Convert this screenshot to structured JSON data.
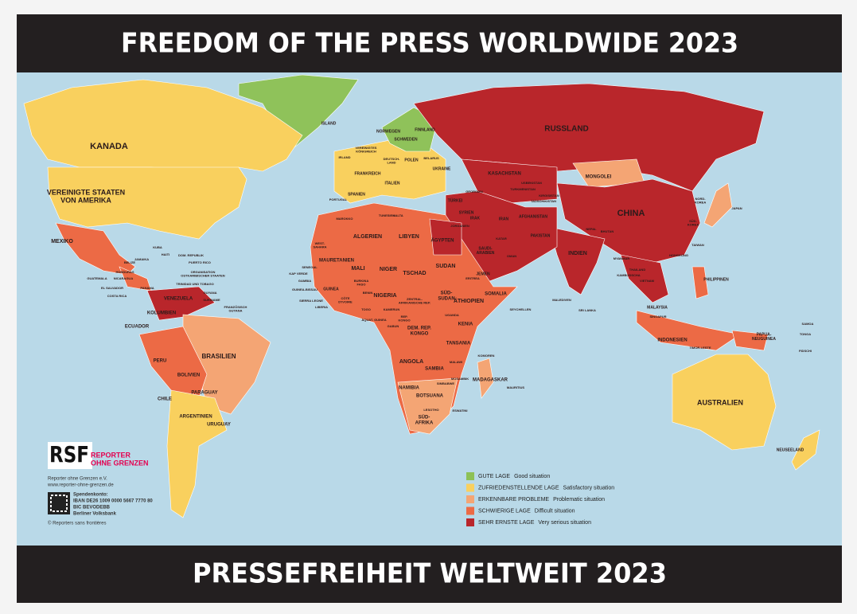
{
  "header": {
    "title": "FREEDOM OF THE PRESS WORLDWIDE 2023"
  },
  "footer": {
    "title": "PRESSEFREIHEIT WELTWEIT 2023"
  },
  "map": {
    "labels": [
      [
        "KANADA"
      ],
      [
        "VEREINIGTE STAATEN",
        "VON AMERIKA"
      ],
      [
        "MEXIKO"
      ],
      [
        "ISLAND"
      ],
      [
        "RUSSLAND"
      ],
      [
        "KASACHSTAN"
      ],
      [
        "MONGOLEI"
      ],
      [
        "CHINA"
      ],
      [
        "INDIEN"
      ],
      [
        "BRASILIEN"
      ],
      [
        "ARGENTINIEN"
      ],
      [
        "CHILE"
      ],
      [
        "PERU"
      ],
      [
        "BOLIVIEN"
      ],
      [
        "KOLUMBIEN"
      ],
      [
        "VENEZUELA"
      ],
      [
        "ECUADOR"
      ],
      [
        "PARAGUAY"
      ],
      [
        "URUGUAY"
      ],
      [
        "AUSTRALIEN"
      ],
      [
        "NEUSEELAND"
      ],
      [
        "INDONESIEN"
      ],
      [
        "PHILIPPINEN"
      ],
      [
        "JAPAN"
      ],
      [
        "ALGERIEN"
      ],
      [
        "LIBYEN"
      ],
      [
        "ÄGYPTEN"
      ],
      [
        "MAURETANIEN"
      ],
      [
        "MALI"
      ],
      [
        "NIGER"
      ],
      [
        "TSCHAD"
      ],
      [
        "SUDAN"
      ],
      [
        "NIGERIA"
      ],
      [
        "ÄTHIOPIEN"
      ],
      [
        "SOMALIA"
      ],
      [
        "KENIA"
      ],
      [
        "DEM. REP.",
        "KONGO"
      ],
      [
        "TANSANIA"
      ],
      [
        "ANGOLA"
      ],
      [
        "SAMBIA"
      ],
      [
        "NAMIBIA"
      ],
      [
        "BOTSUANA"
      ],
      [
        "SÜD-",
        "AFRIKA"
      ],
      [
        "MADAGASKAR"
      ],
      [
        "SAUDI-",
        "ARABIEN"
      ],
      [
        "IRAN"
      ],
      [
        "AFGHANISTAN"
      ],
      [
        "PAKISTAN"
      ],
      [
        "TÜRKEI"
      ],
      [
        "UKRAINE"
      ],
      [
        "POLEN"
      ],
      [
        "FRANKREICH"
      ],
      [
        "SPANIEN"
      ],
      [
        "SCHWEDEN"
      ],
      [
        "FINNLAND"
      ],
      [
        "NORWEGEN"
      ],
      [
        "KUBA"
      ],
      [
        "HAITI"
      ],
      [
        "JEMEN"
      ],
      [
        "SÜD-",
        "SUDAN"
      ],
      [
        "SYRIEN"
      ],
      [
        "IRAK"
      ],
      [
        "THAILAND"
      ],
      [
        "MYANMAR"
      ],
      [
        "VIETNAM"
      ],
      [
        "MALAYSIA"
      ],
      [
        "PAPUA-",
        "NEUGUINEA"
      ],
      [
        "MAROKKO"
      ],
      [
        "GUATEMALA"
      ],
      [
        "NICARAGUA"
      ],
      [
        "COSTA RICA"
      ],
      [
        "WEST-",
        "SAHARA"
      ],
      [
        "SENEGAL"
      ],
      [
        "GUINEA"
      ],
      [
        "SIERRA LEONE"
      ],
      [
        "LIBERIA"
      ],
      [
        "GABUN"
      ],
      [
        "SIMBABWE"
      ],
      [
        "MOSAMBIK"
      ],
      [
        "SRI LANKA"
      ],
      [
        "NEPAL"
      ],
      [
        "BHUTAN"
      ],
      [
        "MALEDIVEN"
      ],
      [
        "SEYCHELLEN"
      ],
      [
        "KOMOREN"
      ],
      [
        "MAURITIUS"
      ],
      [
        "SURINAME"
      ],
      [
        "FRANZÖSISCH",
        "GUYANA"
      ],
      [
        "PANAMA"
      ],
      [
        "TAIWAN"
      ],
      [
        "HONGKONG"
      ],
      [
        "SÜD-",
        "KOREA"
      ],
      [
        "NORD-",
        "KOREA"
      ],
      [
        "TURKMENISTAN"
      ],
      [
        "USBEKISTAN"
      ],
      [
        "VEREINIGTES",
        "KÖNIGREICH"
      ],
      [
        "IRLAND"
      ],
      [
        "DEUTSCH-",
        "LAND"
      ],
      [
        "ITALIEN"
      ],
      [
        "PORTUGAL"
      ],
      [
        "BELARUS"
      ],
      [
        "EL SALVADOR"
      ],
      [
        "HONDURAS"
      ],
      [
        "JAMAIKA"
      ],
      [
        "DOM. REPUBLIK"
      ],
      [
        "PUERTO RICO"
      ],
      [
        "BELIZE"
      ],
      [
        "TRINIDAD UND TOBAGO"
      ],
      [
        "GUYANA"
      ],
      [
        "KAMBODSCHA"
      ],
      [
        "SINGAPUR"
      ],
      [
        "TIMOR-LESTE"
      ],
      [
        "FIDSCHI"
      ],
      [
        "SAMOA"
      ],
      [
        "TONGA"
      ],
      [
        "ÄQUAT. GUINEA"
      ],
      [
        "REP.",
        "KONGO"
      ],
      [
        "KAMERUN"
      ],
      [
        "ZENTRAL-",
        "AFRIKANISCHE REP."
      ],
      [
        "ERITREA"
      ],
      [
        "UGANDA"
      ],
      [
        "MALAWI"
      ],
      [
        "LESOTHO"
      ],
      [
        "ESWATINI"
      ],
      [
        "ORGANISATION",
        "OSTKARIBISCHER STAATEN"
      ],
      [
        "GAMBIA"
      ],
      [
        "GUINEA-BISSAU"
      ],
      [
        "KAP VERDE"
      ],
      [
        "CÔTE",
        "D'IVOIRE"
      ],
      [
        "BURKINA",
        "FASO"
      ],
      [
        "TOGO"
      ],
      [
        "OMAN"
      ],
      [
        "KATAR"
      ],
      [
        "TUNESIEN"
      ],
      [
        "MALTA"
      ],
      [
        "GEORGIEN"
      ],
      [
        "KIRGISISTAN"
      ],
      [
        "TADSCHIKISTAN"
      ],
      [
        "BENIN"
      ],
      [
        "JORDANIEN"
      ]
    ]
  },
  "legend": {
    "items": [
      {
        "label": "GUTE LAGE",
        "description": "Good situation",
        "color": "#8dc156"
      },
      {
        "label": "ZUFRIEDENSTELLENDE LAGE",
        "description": "Satisfactory situation",
        "color": "#f9d05e"
      },
      {
        "label": "ERKENNBARE PROBLEME",
        "description": "Problematic situation",
        "color": "#f4a574"
      },
      {
        "label": "SCHWIERIGE LAGE",
        "description": "Difficult situation",
        "color": "#ec6a45"
      },
      {
        "label": "SEHR ERNSTE LAGE",
        "description": "Very serious situation",
        "color": "#b9262b"
      }
    ]
  },
  "publisher": {
    "logo": "RSF",
    "logo_top": "REPORTER",
    "logo_bottom": "OHNE GRENZEN",
    "lines": [
      "Reporter ohne Grenzen e.V.",
      "www.reporter-ohne-grenzen.de"
    ],
    "donation": [
      "Spendenkonto:",
      "IBAN DE26 1009 0000 5667 7770 80",
      "BIC BEVODEBB",
      "Berliner Volksbank"
    ],
    "copyright": "© Reporters sans frontières"
  }
}
